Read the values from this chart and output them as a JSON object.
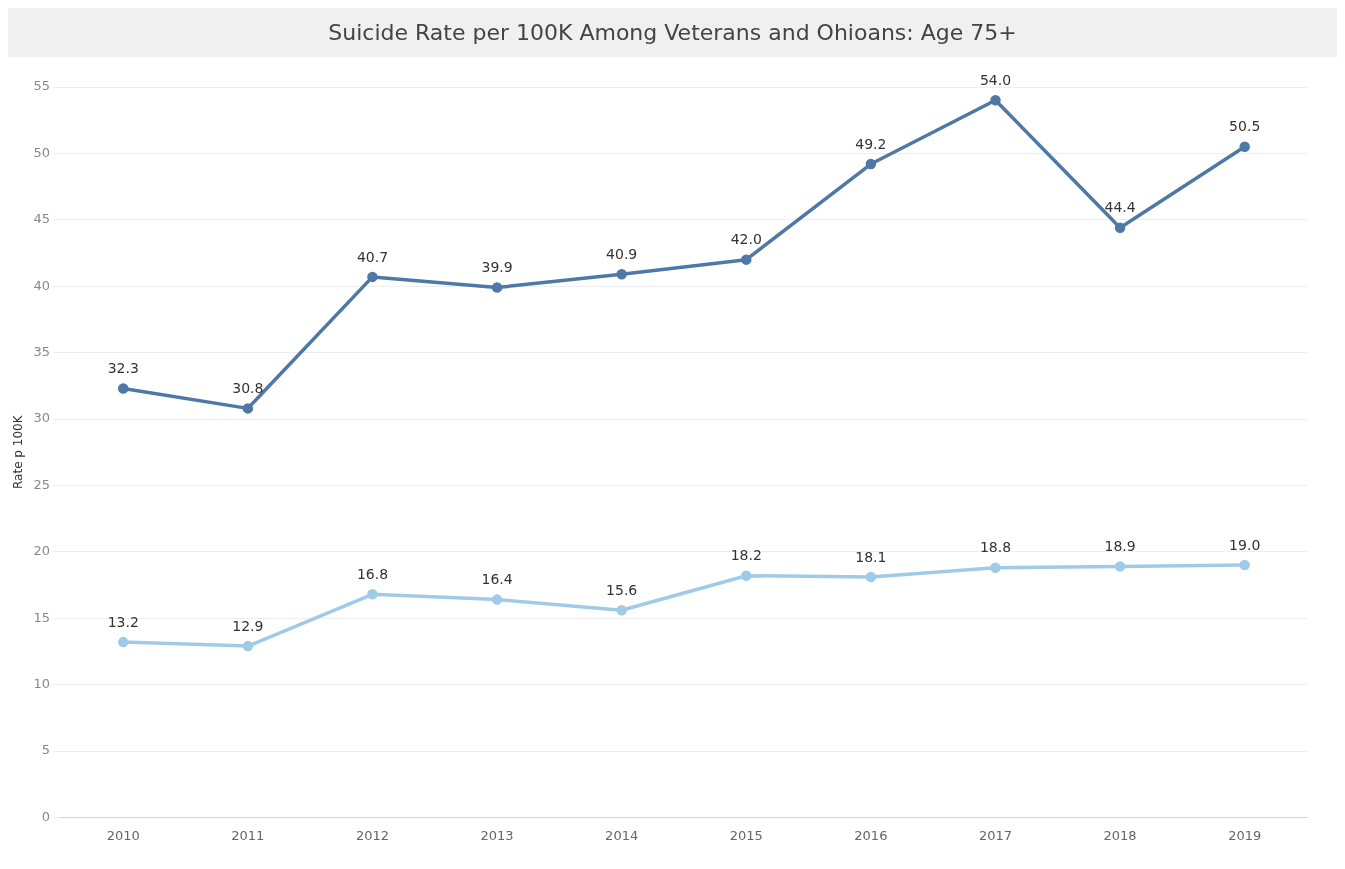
{
  "chart_data": {
    "type": "line",
    "title": "Suicide Rate per 100K Among Veterans and Ohioans: Age 75+",
    "ylabel": "Rate p 100K",
    "categories": [
      "2010",
      "2011",
      "2012",
      "2013",
      "2014",
      "2015",
      "2016",
      "2017",
      "2018",
      "2019"
    ],
    "series": [
      {
        "color": "#4e79a7",
        "values": [
          32.3,
          30.8,
          40.7,
          39.9,
          40.9,
          42.0,
          49.2,
          54.0,
          44.4,
          50.5
        ],
        "value_labels": [
          "32.3",
          "30.8",
          "40.7",
          "39.9",
          "40.9",
          "42.0",
          "49.2",
          "54.0",
          "44.4",
          "50.5"
        ]
      },
      {
        "color": "#a0cbe8",
        "values": [
          13.2,
          12.9,
          16.8,
          16.4,
          15.6,
          18.2,
          18.1,
          18.8,
          18.9,
          19.0
        ],
        "value_labels": [
          "13.2",
          "12.9",
          "16.8",
          "16.4",
          "15.6",
          "18.2",
          "18.1",
          "18.8",
          "18.9",
          "19.0"
        ]
      }
    ],
    "ylim": [
      0,
      55
    ],
    "yticks": [
      0,
      5,
      10,
      15,
      20,
      25,
      30,
      35,
      40,
      45,
      50,
      55
    ],
    "grid": "y",
    "legend": false,
    "marker": "circle",
    "line_style": "solid"
  }
}
